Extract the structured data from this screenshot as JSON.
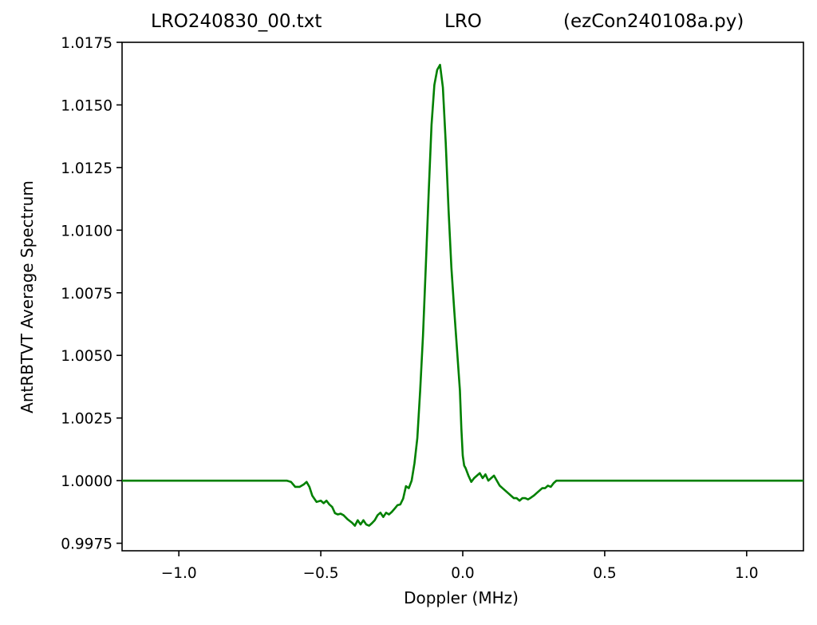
{
  "title": {
    "left": "LRO240830_00.txt",
    "center": "LRO",
    "right": "(ezCon240108a.py)"
  },
  "chart_data": {
    "type": "line",
    "xlabel": "Doppler (MHz)",
    "ylabel": "AntRBTVT Average Spectrum",
    "xlim": [
      -1.2,
      1.2
    ],
    "ylim": [
      0.9972,
      1.0175
    ],
    "xticks": [
      -1.0,
      -0.5,
      0.0,
      0.5,
      1.0
    ],
    "xtick_labels": [
      "−1.0",
      "−0.5",
      "0.0",
      "0.5",
      "1.0"
    ],
    "yticks": [
      0.9975,
      1.0,
      1.0025,
      1.005,
      1.0075,
      1.01,
      1.0125,
      1.015,
      1.0175
    ],
    "ytick_labels": [
      "0.9975",
      "1.0000",
      "1.0025",
      "1.0050",
      "1.0075",
      "1.0100",
      "1.0125",
      "1.0150",
      "1.0175"
    ],
    "grid": false,
    "series": [
      {
        "color": "#008000",
        "x": [
          -1.2,
          -1.0,
          -0.8,
          -0.62,
          -0.605,
          -0.59,
          -0.575,
          -0.56,
          -0.55,
          -0.54,
          -0.53,
          -0.515,
          -0.5,
          -0.49,
          -0.48,
          -0.47,
          -0.46,
          -0.45,
          -0.44,
          -0.43,
          -0.42,
          -0.405,
          -0.39,
          -0.38,
          -0.37,
          -0.36,
          -0.35,
          -0.34,
          -0.33,
          -0.32,
          -0.31,
          -0.3,
          -0.29,
          -0.28,
          -0.27,
          -0.26,
          -0.25,
          -0.24,
          -0.23,
          -0.22,
          -0.21,
          -0.2,
          -0.19,
          -0.18,
          -0.17,
          -0.16,
          -0.15,
          -0.14,
          -0.13,
          -0.12,
          -0.11,
          -0.1,
          -0.09,
          -0.08,
          -0.07,
          -0.06,
          -0.05,
          -0.04,
          -0.03,
          -0.02,
          -0.01,
          -0.005,
          0.0,
          0.005,
          0.01,
          0.02,
          0.03,
          0.04,
          0.05,
          0.06,
          0.07,
          0.08,
          0.09,
          0.1,
          0.11,
          0.12,
          0.13,
          0.14,
          0.15,
          0.16,
          0.17,
          0.18,
          0.19,
          0.2,
          0.21,
          0.22,
          0.23,
          0.24,
          0.25,
          0.26,
          0.27,
          0.28,
          0.29,
          0.3,
          0.31,
          0.32,
          0.33,
          0.34,
          0.35,
          0.36,
          0.37,
          0.38,
          0.39,
          0.4,
          0.41,
          0.42,
          0.43,
          0.44,
          0.45,
          0.46,
          0.47,
          0.48,
          0.49,
          0.5,
          0.51,
          0.52,
          0.53,
          0.54,
          0.55,
          0.56,
          0.57,
          0.58,
          0.6,
          0.7,
          0.8,
          1.0,
          1.2
        ],
        "y": [
          1.0,
          1.0,
          1.0,
          1.0,
          0.99995,
          0.99975,
          0.99975,
          0.99985,
          0.99995,
          0.99975,
          0.9994,
          0.99915,
          0.9992,
          0.9991,
          0.9992,
          0.99905,
          0.99895,
          0.9987,
          0.99865,
          0.99868,
          0.99862,
          0.99845,
          0.99832,
          0.9982,
          0.99842,
          0.99825,
          0.99842,
          0.99825,
          0.9982,
          0.9983,
          0.99842,
          0.99862,
          0.99872,
          0.99855,
          0.99872,
          0.99865,
          0.99875,
          0.99888,
          0.99902,
          0.99905,
          0.99928,
          0.99978,
          0.9997,
          1.0,
          1.0007,
          1.0017,
          1.0036,
          1.0058,
          1.0086,
          1.0115,
          1.0142,
          1.0158,
          1.0164,
          1.0166,
          1.0157,
          1.0135,
          1.0108,
          1.0085,
          1.0068,
          1.0052,
          1.0036,
          1.0021,
          1.001,
          1.0006,
          1.0005,
          1.0002,
          0.99995,
          1.0001,
          1.0002,
          1.0003,
          1.0001,
          1.00025,
          1.0,
          1.0001,
          1.0002,
          1.0,
          0.9998,
          0.9997,
          0.9996,
          0.9995,
          0.9994,
          0.9993,
          0.9993,
          0.9992,
          0.9993,
          0.9993,
          0.99925,
          0.99932,
          0.9994,
          0.9995,
          0.9996,
          0.9997,
          0.9997,
          0.9998,
          0.99975,
          0.9999,
          1.0,
          1.0,
          1.0,
          1.0,
          1.0,
          1.0,
          1.0,
          1.0,
          1.0,
          1.0,
          1.0,
          1.0,
          1.0,
          1.0,
          1.0,
          1.0,
          1.0,
          1.0,
          1.0,
          1.0,
          1.0,
          1.0,
          1.0,
          1.0,
          1.0,
          1.0,
          1.0,
          1.0,
          1.0,
          1.0,
          1.0
        ]
      }
    ]
  }
}
